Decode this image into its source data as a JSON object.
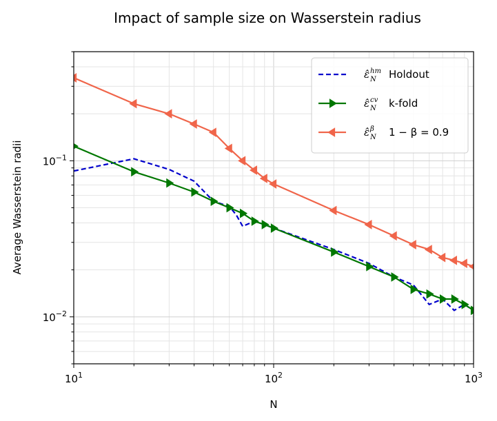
{
  "chart_data": {
    "type": "line",
    "title": "Impact of sample size on Wasserstein radius",
    "xlabel": "N",
    "ylabel": "Average Wasserstein radii",
    "xscale": "log",
    "yscale": "log",
    "xlim": [
      10,
      1000
    ],
    "ylim": [
      0.005,
      0.5
    ],
    "grid": "on (major and minor)",
    "legend_position": "top-right",
    "x_ticks": [
      {
        "base": "10",
        "exp": "1",
        "value": 10
      },
      {
        "base": "10",
        "exp": "2",
        "value": 100
      },
      {
        "base": "10",
        "exp": "3",
        "value": 1000
      }
    ],
    "y_ticks": [
      {
        "base": "10",
        "exp": "−2",
        "value": 0.01
      },
      {
        "base": "10",
        "exp": "−1",
        "value": 0.1
      }
    ],
    "series": [
      {
        "name": "Holdout",
        "symbol": "ε̂",
        "sub": "N",
        "sup": "hm",
        "suffix": "Holdout",
        "color": "#0000cc",
        "style": "dashed",
        "marker": "none",
        "x": [
          10,
          20,
          30,
          40,
          50,
          60,
          65,
          70,
          80,
          90,
          100,
          200,
          300,
          400,
          500,
          600,
          700,
          800,
          900,
          1000
        ],
        "y": [
          0.086,
          0.103,
          0.088,
          0.074,
          0.055,
          0.051,
          0.045,
          0.038,
          0.041,
          0.039,
          0.037,
          0.027,
          0.022,
          0.018,
          0.016,
          0.012,
          0.013,
          0.011,
          0.012,
          0.011
        ]
      },
      {
        "name": "k-fold",
        "symbol": "ε̂",
        "sub": "N",
        "sup": "cv",
        "suffix": "k-fold",
        "color": "#007700",
        "style": "solid",
        "marker": "triangle-right",
        "x": [
          10,
          20,
          30,
          40,
          50,
          60,
          70,
          80,
          90,
          100,
          200,
          300,
          400,
          500,
          600,
          700,
          800,
          900,
          1000
        ],
        "y": [
          0.124,
          0.085,
          0.072,
          0.063,
          0.055,
          0.05,
          0.046,
          0.041,
          0.039,
          0.037,
          0.026,
          0.021,
          0.018,
          0.015,
          0.014,
          0.013,
          0.013,
          0.012,
          0.011
        ]
      },
      {
        "name": "1 − β = 0.9",
        "symbol": "ε̂",
        "sub": "N",
        "sup": "β",
        "suffix": "1 − β = 0.9",
        "color": "#f0654a",
        "style": "solid",
        "marker": "triangle-left",
        "x": [
          10,
          20,
          30,
          40,
          50,
          60,
          70,
          80,
          90,
          100,
          200,
          300,
          400,
          500,
          600,
          700,
          800,
          900,
          1000
        ],
        "y": [
          0.34,
          0.232,
          0.2,
          0.172,
          0.152,
          0.12,
          0.1,
          0.087,
          0.077,
          0.071,
          0.048,
          0.039,
          0.033,
          0.029,
          0.027,
          0.024,
          0.023,
          0.022,
          0.021
        ]
      }
    ]
  }
}
